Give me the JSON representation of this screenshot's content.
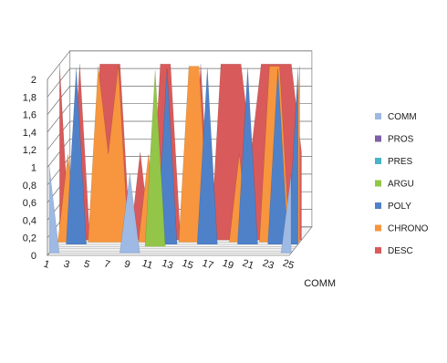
{
  "chart_data": {
    "type": "area",
    "view": "3d",
    "title": "",
    "xlabel": "",
    "ylabel": "",
    "ylim": [
      0,
      2
    ],
    "y_ticks": [
      "0",
      "0,2",
      "0,4",
      "0,6",
      "0,8",
      "1",
      "1,2",
      "1,4",
      "1,6",
      "1,8",
      "2"
    ],
    "x": [
      1,
      2,
      3,
      4,
      5,
      6,
      7,
      8,
      9,
      10,
      11,
      12,
      13,
      14,
      15,
      16,
      17,
      18,
      19,
      20,
      21,
      22,
      23,
      24,
      25
    ],
    "x_tick_labels": [
      "1",
      "3",
      "5",
      "7",
      "9",
      "11",
      "13",
      "15",
      "17",
      "19",
      "21",
      "23",
      "25"
    ],
    "depth_axis_label": "COMM",
    "grid": true,
    "legend_position": "right",
    "series": [
      {
        "name": "COMM",
        "color": "#9db9e4",
        "values": [
          1,
          0,
          0,
          0,
          0,
          0,
          0,
          0,
          0.9,
          0,
          0,
          0,
          0,
          0,
          0,
          0,
          0,
          0,
          0,
          0,
          0,
          0,
          0,
          0,
          0.9
        ]
      },
      {
        "name": "PROS",
        "color": "#7f5fa8",
        "values": [
          0,
          0,
          0,
          0,
          0,
          0,
          0,
          0,
          0,
          0,
          0,
          0,
          0,
          0,
          0,
          0,
          0,
          0,
          0,
          0,
          0,
          0,
          0,
          0,
          0
        ]
      },
      {
        "name": "PRES",
        "color": "#49b4c8",
        "values": [
          0,
          0,
          0,
          0,
          0,
          0,
          0,
          0,
          0,
          0,
          0,
          0,
          0,
          0,
          0,
          0,
          0,
          0,
          0,
          0,
          0,
          0,
          0,
          0,
          0
        ]
      },
      {
        "name": "ARGU",
        "color": "#93c548",
        "values": [
          0,
          0,
          0,
          0,
          0,
          0,
          0,
          0,
          0,
          0,
          2,
          0,
          0,
          0,
          0,
          0,
          0,
          0,
          0,
          0,
          0,
          0,
          0,
          0,
          0
        ]
      },
      {
        "name": "POLY",
        "color": "#4f81c9",
        "values": [
          0,
          0,
          2,
          0,
          0,
          0,
          0,
          0,
          0,
          0,
          0,
          2,
          0,
          0,
          0,
          2,
          0,
          0,
          0,
          2,
          0,
          0,
          2,
          0,
          2
        ]
      },
      {
        "name": "CHRONO",
        "color": "#f7963e",
        "values": [
          0,
          1,
          0,
          0,
          2,
          1,
          2,
          0,
          0,
          1,
          0,
          0,
          0,
          2,
          2,
          0,
          0,
          0,
          1,
          0,
          0,
          2,
          2,
          0,
          2
        ]
      },
      {
        "name": "DESC",
        "color": "#d95a5a",
        "values": [
          2,
          0,
          2,
          0,
          2,
          2,
          2,
          0,
          1,
          0,
          2,
          2,
          0,
          0,
          2,
          0,
          2,
          2,
          2,
          1,
          2,
          2,
          2,
          2,
          1
        ]
      }
    ]
  }
}
